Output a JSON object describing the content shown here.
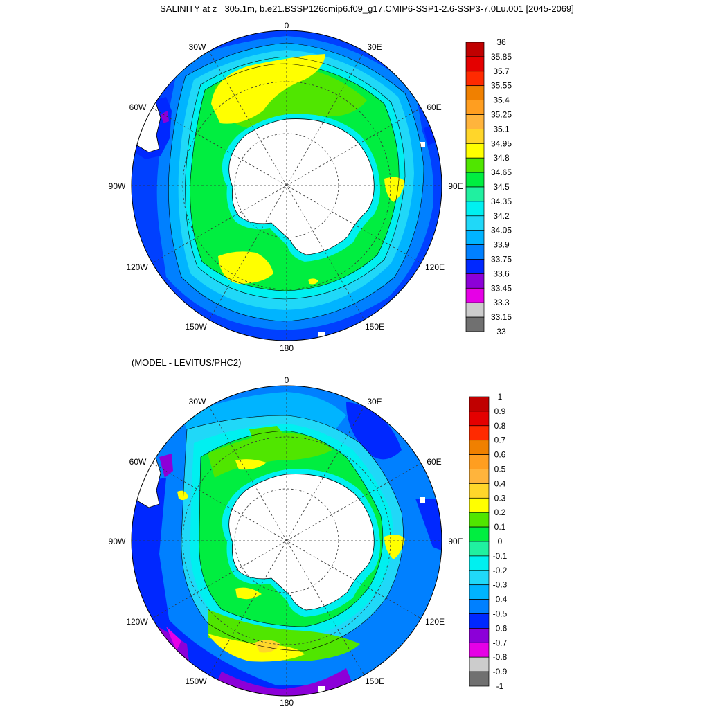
{
  "title": "SALINITY at z= 305.1m, b.e21.BSSP126cmip6.f09_g17.CMIP6-SSP1-2.6-SSP3-7.0Lu.001 [2045-2069]",
  "panels": [
    {
      "id": "salinity",
      "subtitle": "",
      "projection": "south-polar-stereographic",
      "longitude_labels": [
        "0",
        "30E",
        "60E",
        "90E",
        "120E",
        "150E",
        "180",
        "150W",
        "120W",
        "90W",
        "60W",
        "30W"
      ],
      "colorbar": {
        "labels": [
          "36",
          "35.85",
          "35.7",
          "35.55",
          "35.4",
          "35.25",
          "35.1",
          "34.95",
          "34.8",
          "34.65",
          "34.5",
          "34.35",
          "34.2",
          "34.05",
          "33.9",
          "33.75",
          "33.6",
          "33.45",
          "33.3",
          "33.15",
          "33"
        ],
        "colors": [
          "#c00000",
          "#e40000",
          "#ff2a00",
          "#f08000",
          "#ff9e20",
          "#ffb43c",
          "#ffd62a",
          "#ffff00",
          "#50e600",
          "#00ee40",
          "#20f0a0",
          "#00f0f0",
          "#20d8f8",
          "#00b4ff",
          "#0080ff",
          "#0028ff",
          "#8c00d8",
          "#e600e6",
          "#cccccc",
          "#707070"
        ]
      }
    },
    {
      "id": "difference",
      "subtitle": "(MODEL - LEVITUS/PHC2)",
      "projection": "south-polar-stereographic",
      "longitude_labels": [
        "0",
        "30E",
        "60E",
        "90E",
        "120E",
        "150E",
        "180",
        "150W",
        "120W",
        "90W",
        "60W",
        "30W"
      ],
      "colorbar": {
        "labels": [
          "1",
          "0.9",
          "0.8",
          "0.7",
          "0.6",
          "0.5",
          "0.4",
          "0.3",
          "0.2",
          "0.1",
          "0",
          "-0.1",
          "-0.2",
          "-0.3",
          "-0.4",
          "-0.5",
          "-0.6",
          "-0.7",
          "-0.8",
          "-0.9",
          "-1"
        ],
        "colors": [
          "#c00000",
          "#e40000",
          "#ff2a00",
          "#f08000",
          "#ff9e20",
          "#ffb43c",
          "#ffd62a",
          "#ffff00",
          "#50e600",
          "#00ee40",
          "#20f0a0",
          "#00f0f0",
          "#20d8f8",
          "#00b4ff",
          "#0080ff",
          "#0028ff",
          "#8c00d8",
          "#e600e6",
          "#cccccc",
          "#707070"
        ]
      }
    }
  ]
}
